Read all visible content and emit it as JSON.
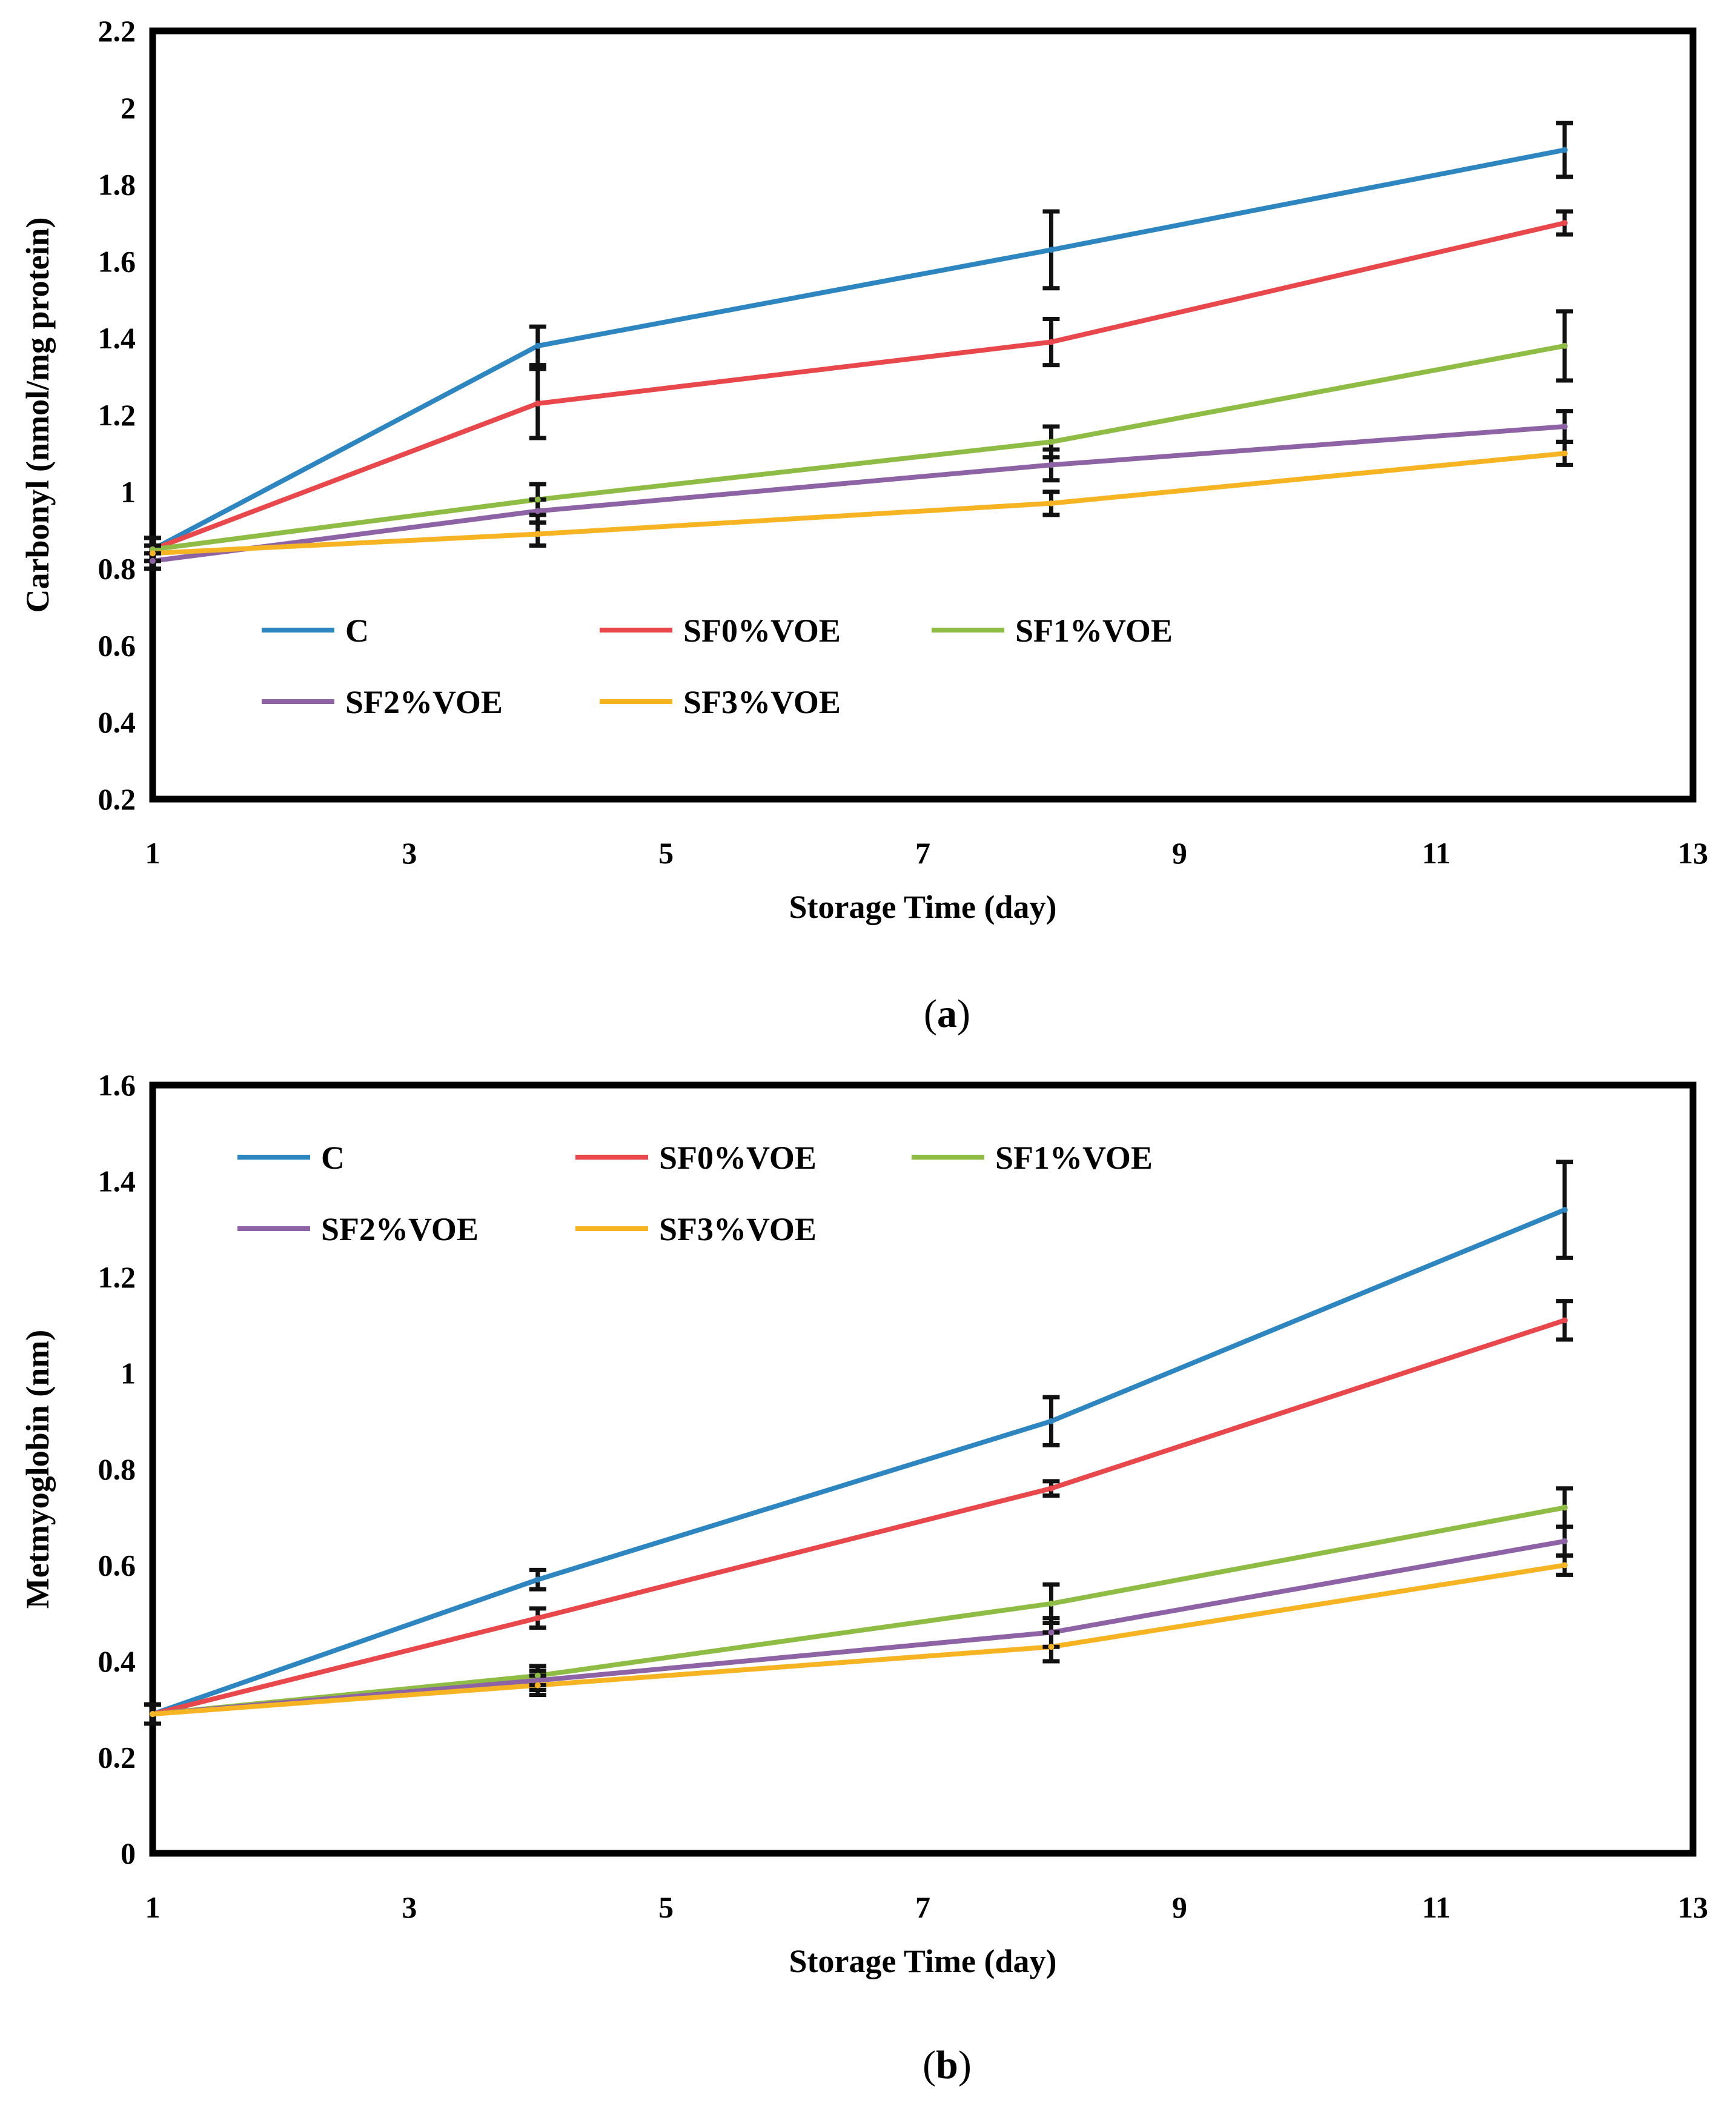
{
  "chart_data": [
    {
      "type": "line",
      "panel_label": "(a)",
      "panel_label_parts": [
        "(",
        "a",
        ")"
      ],
      "xlabel": "Storage Time (day)",
      "ylabel": "Carbonyl (nmol/mg protein)",
      "xlim": [
        1,
        13
      ],
      "ylim": [
        0.2,
        2.2
      ],
      "xticks": [
        1,
        3,
        5,
        7,
        9,
        11,
        13
      ],
      "yticks": [
        0.2,
        0.4,
        0.6,
        0.8,
        1,
        1.2,
        1.4,
        1.6,
        1.8,
        2,
        2.2
      ],
      "ytick_labels": [
        "0.2",
        "0.4",
        "0.6",
        "0.8",
        "1",
        "1.2",
        "1.4",
        "1.6",
        "1.8",
        "2",
        "2.2"
      ],
      "grid": false,
      "legend_position": "lower-left",
      "x": [
        1,
        4,
        8,
        12
      ],
      "series": [
        {
          "name": "C",
          "color": "#2E86C1",
          "values": [
            0.85,
            1.38,
            1.63,
            1.89
          ],
          "errors": [
            0.03,
            0.05,
            0.1,
            0.07
          ]
        },
        {
          "name": "SF0%VOE",
          "color": "#E8474C",
          "values": [
            0.85,
            1.23,
            1.39,
            1.7
          ],
          "errors": [
            0.03,
            0.09,
            0.06,
            0.03
          ]
        },
        {
          "name": "SF1%VOE",
          "color": "#8FBC45",
          "values": [
            0.85,
            0.98,
            1.13,
            1.38
          ],
          "errors": [
            0.03,
            0.04,
            0.04,
            0.09
          ]
        },
        {
          "name": "SF2%VOE",
          "color": "#8E63A5",
          "values": [
            0.82,
            0.95,
            1.07,
            1.17
          ],
          "errors": [
            0.02,
            0.03,
            0.04,
            0.04
          ]
        },
        {
          "name": "SF3%VOE",
          "color": "#F6B322",
          "values": [
            0.84,
            0.89,
            0.97,
            1.1
          ],
          "errors": [
            0.02,
            0.03,
            0.03,
            0.03
          ]
        }
      ]
    },
    {
      "type": "line",
      "panel_label": "(b)",
      "panel_label_parts": [
        "(",
        "b",
        ")"
      ],
      "xlabel": "Storage Time (day)",
      "ylabel": "Metmyoglobin (nm)",
      "xlim": [
        1,
        13
      ],
      "ylim": [
        0,
        1.6
      ],
      "xticks": [
        1,
        3,
        5,
        7,
        9,
        11,
        13
      ],
      "yticks": [
        0,
        0.2,
        0.4,
        0.6,
        0.8,
        1,
        1.2,
        1.4,
        1.6
      ],
      "ytick_labels": [
        "0",
        "0.2",
        "0.4",
        "0.6",
        "0.8",
        "1",
        "1.2",
        "1.4",
        "1.6"
      ],
      "grid": false,
      "legend_position": "top-left",
      "x": [
        1,
        4,
        8,
        12
      ],
      "series": [
        {
          "name": "C",
          "color": "#2E86C1",
          "values": [
            0.29,
            0.57,
            0.9,
            1.34
          ],
          "errors": [
            0.02,
            0.02,
            0.05,
            0.1
          ]
        },
        {
          "name": "SF0%VOE",
          "color": "#E8474C",
          "values": [
            0.29,
            0.49,
            0.76,
            1.11
          ],
          "errors": [
            0.02,
            0.02,
            0.015,
            0.04
          ]
        },
        {
          "name": "SF1%VOE",
          "color": "#8FBC45",
          "values": [
            0.29,
            0.37,
            0.52,
            0.72
          ],
          "errors": [
            0.02,
            0.02,
            0.04,
            0.04
          ]
        },
        {
          "name": "SF2%VOE",
          "color": "#8E63A5",
          "values": [
            0.29,
            0.36,
            0.46,
            0.65
          ],
          "errors": [
            0.02,
            0.02,
            0.03,
            0.03
          ]
        },
        {
          "name": "SF3%VOE",
          "color": "#F6B322",
          "values": [
            0.29,
            0.35,
            0.43,
            0.6
          ],
          "errors": [
            0.02,
            0.02,
            0.03,
            0.02
          ]
        }
      ]
    }
  ]
}
